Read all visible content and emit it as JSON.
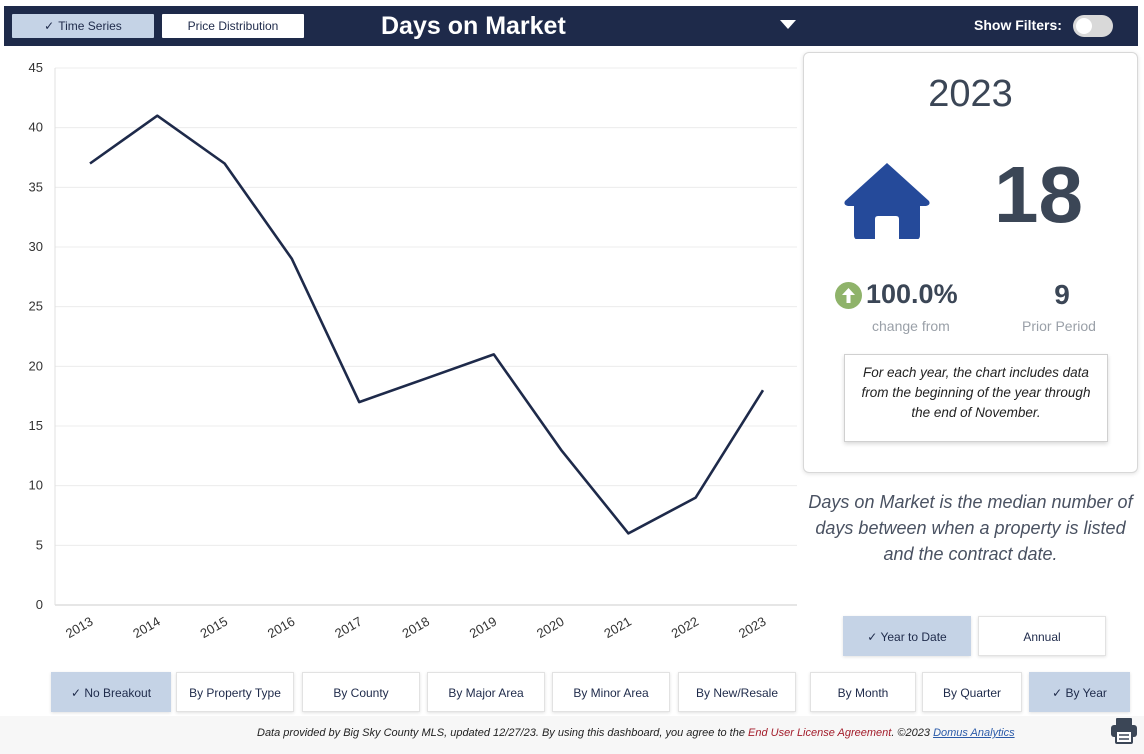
{
  "header": {
    "tab_time_series": "Time Series",
    "tab_price_distribution": "Price Distribution",
    "title": "Days on Market",
    "show_filters_label": "Show Filters:"
  },
  "kpi": {
    "year": "2023",
    "value": "18",
    "change_pct": "100.0%",
    "change_label": "change from",
    "prior_value": "9",
    "prior_label": "Prior Period",
    "note": "For each year, the chart includes data from the beginning of the year through the end of November."
  },
  "definition": "Days on Market is the median number of days between when a property is listed and the contract date.",
  "period_buttons": {
    "year_to_date": "Year to Date",
    "annual": "Annual"
  },
  "breakout_buttons": {
    "no_breakout": "No Breakout",
    "by_property_type": "By Property Type",
    "by_county": "By County",
    "by_major_area": "By Major Area",
    "by_minor_area": "By Minor Area",
    "by_new_resale": "By New/Resale"
  },
  "interval_buttons": {
    "by_month": "By Month",
    "by_quarter": "By Quarter",
    "by_year": "By Year"
  },
  "footer": {
    "text_before": "Data provided by Big Sky County MLS, updated 12/27/23.  By using this dashboard, you agree to the ",
    "eula": "End User License Agreement",
    "text_middle": ".  ©2023 ",
    "domus": "Domus Analytics"
  },
  "colors": {
    "navy": "#1e2a4a",
    "selected": "#c5d3e6",
    "up_green": "#8fb36a",
    "house_blue": "#254a9a"
  },
  "chart_data": {
    "type": "line",
    "x": [
      "2013",
      "2014",
      "2015",
      "2016",
      "2017",
      "2018",
      "2019",
      "2020",
      "2021",
      "2022",
      "2023"
    ],
    "series": [
      {
        "values": [
          37,
          41,
          37,
          29,
          17,
          19,
          21,
          13,
          6,
          9,
          18
        ]
      }
    ],
    "ylim": [
      0,
      45
    ],
    "yticks": [
      0,
      5,
      10,
      15,
      20,
      25,
      30,
      35,
      40,
      45
    ],
    "grid": true,
    "line_color": "#1e2a4a"
  }
}
